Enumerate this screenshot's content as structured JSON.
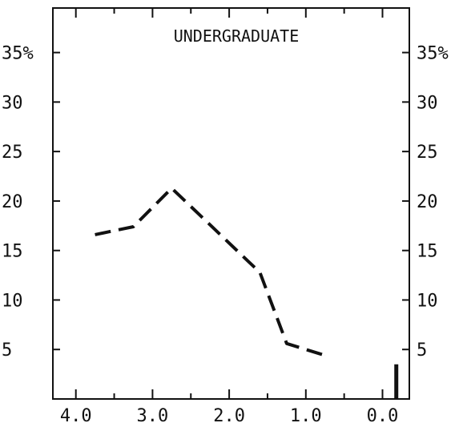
{
  "chart_data": {
    "type": "line",
    "title": "UNDERGRADUATE",
    "xlabel": "",
    "ylabel": "",
    "x_axis_reversed": true,
    "xlim": [
      4.3,
      -0.35
    ],
    "ylim": [
      0,
      39.5
    ],
    "x_ticks": [
      {
        "value": 4.0,
        "label": "4.0"
      },
      {
        "value": 3.0,
        "label": "3.0"
      },
      {
        "value": 2.0,
        "label": "2.0"
      },
      {
        "value": 1.0,
        "label": "1.0"
      },
      {
        "value": 0.0,
        "label": "0.0"
      }
    ],
    "x_minor_ticks": [
      3.5,
      2.5,
      1.5,
      0.5
    ],
    "y_ticks": [
      {
        "value": 5,
        "label": "5"
      },
      {
        "value": 10,
        "label": "10"
      },
      {
        "value": 15,
        "label": "15"
      },
      {
        "value": 20,
        "label": "20"
      },
      {
        "value": 25,
        "label": "25"
      },
      {
        "value": 30,
        "label": "30"
      },
      {
        "value": 35,
        "label": "35%"
      }
    ],
    "series": [
      {
        "line_style": "dashed",
        "color": "#111111",
        "x": [
          3.75,
          3.25,
          2.75,
          2.25,
          1.75,
          1.6,
          1.25,
          0.75
        ],
        "y": [
          16.6,
          17.4,
          21.3,
          17.6,
          13.9,
          12.8,
          5.6,
          4.4
        ]
      }
    ],
    "isolated_bar": {
      "x": -0.18,
      "y": 3.5
    }
  }
}
